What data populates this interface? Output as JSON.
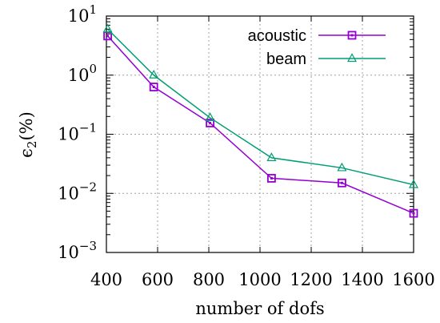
{
  "chart_data": {
    "type": "line",
    "title": "",
    "xlabel": "number of dofs",
    "ylabel_main": "ϵ",
    "ylabel_sub": "2",
    "ylabel_tail": "(%)",
    "xlim": [
      400,
      1600
    ],
    "ylim": [
      0.001,
      10
    ],
    "yscale": "log",
    "grid": true,
    "legend_position": "top-right",
    "x_ticks": [
      400,
      600,
      800,
      1000,
      1200,
      1400,
      1600
    ],
    "x_tick_labels": [
      "400",
      "600",
      "800",
      "1000",
      "1200",
      "1400",
      "1600"
    ],
    "y_ticks": [
      {
        "value": 10,
        "base": "10",
        "exp": "1"
      },
      {
        "value": 1,
        "base": "10",
        "exp": "0"
      },
      {
        "value": 0.1,
        "base": "10",
        "exp": "−1"
      },
      {
        "value": 0.01,
        "base": "10",
        "exp": "−2"
      },
      {
        "value": 0.001,
        "base": "10",
        "exp": "−3"
      }
    ],
    "series": [
      {
        "name": "acoustic",
        "color": "#9400d3",
        "marker": "square",
        "x": [
          405,
          585,
          805,
          1045,
          1320,
          1600
        ],
        "y": [
          4.6,
          0.63,
          0.155,
          0.018,
          0.015,
          0.0046
        ]
      },
      {
        "name": "beam",
        "color": "#009e73",
        "marker": "triangle",
        "x": [
          405,
          585,
          805,
          1045,
          1320,
          1600
        ],
        "y": [
          6.0,
          1.0,
          0.19,
          0.04,
          0.027,
          0.014
        ]
      }
    ]
  }
}
